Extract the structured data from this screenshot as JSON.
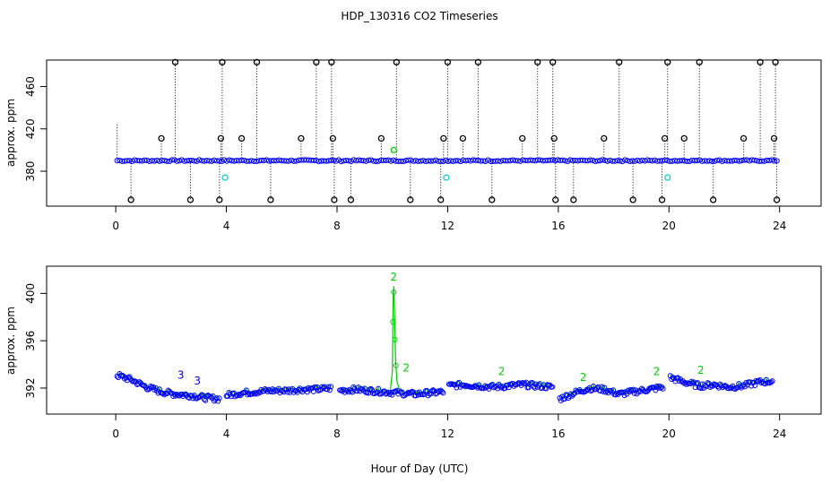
{
  "title": "HDP_130316  CO2 Timeseries",
  "xlabel": "Hour of Day (UTC)",
  "colors": {
    "blue": "#0000ff",
    "green": "#00cc00",
    "black": "#000000",
    "cyan": "#00cccc"
  },
  "chart_data": [
    {
      "type": "scatter",
      "ylabel": "approx. ppm",
      "xlim": [
        -2.5,
        25.5
      ],
      "ylim": [
        347,
        485
      ],
      "xticks": [
        "0",
        "4",
        "8",
        "12",
        "16",
        "20",
        "24"
      ],
      "yticks": [
        "380",
        "420",
        "460"
      ],
      "baseline": 390,
      "high_spikes": [
        {
          "x": 2.15,
          "y": 483
        },
        {
          "x": 3.85,
          "y": 483
        },
        {
          "x": 5.1,
          "y": 483
        },
        {
          "x": 7.25,
          "y": 483
        },
        {
          "x": 7.8,
          "y": 483
        },
        {
          "x": 10.15,
          "y": 483
        },
        {
          "x": 12.0,
          "y": 483
        },
        {
          "x": 13.1,
          "y": 483
        },
        {
          "x": 15.25,
          "y": 483
        },
        {
          "x": 15.8,
          "y": 483
        },
        {
          "x": 18.2,
          "y": 483
        },
        {
          "x": 19.95,
          "y": 483
        },
        {
          "x": 21.1,
          "y": 483
        },
        {
          "x": 23.3,
          "y": 483
        },
        {
          "x": 23.85,
          "y": 483
        }
      ],
      "mid_spikes": [
        {
          "x": 1.65,
          "y": 411
        },
        {
          "x": 3.8,
          "y": 411
        },
        {
          "x": 4.55,
          "y": 411
        },
        {
          "x": 6.7,
          "y": 411
        },
        {
          "x": 7.85,
          "y": 411
        },
        {
          "x": 9.6,
          "y": 411
        },
        {
          "x": 11.85,
          "y": 411
        },
        {
          "x": 12.55,
          "y": 411
        },
        {
          "x": 14.7,
          "y": 411
        },
        {
          "x": 15.85,
          "y": 411
        },
        {
          "x": 17.65,
          "y": 411
        },
        {
          "x": 19.85,
          "y": 411
        },
        {
          "x": 20.55,
          "y": 411
        },
        {
          "x": 22.7,
          "y": 411
        },
        {
          "x": 23.8,
          "y": 411
        }
      ],
      "low_spikes": [
        {
          "x": 0.55,
          "y": 353
        },
        {
          "x": 2.7,
          "y": 353
        },
        {
          "x": 3.75,
          "y": 353
        },
        {
          "x": 5.6,
          "y": 353
        },
        {
          "x": 7.9,
          "y": 353
        },
        {
          "x": 8.5,
          "y": 353
        },
        {
          "x": 10.65,
          "y": 353
        },
        {
          "x": 11.75,
          "y": 353
        },
        {
          "x": 13.6,
          "y": 353
        },
        {
          "x": 15.9,
          "y": 353
        },
        {
          "x": 16.55,
          "y": 353
        },
        {
          "x": 18.7,
          "y": 353
        },
        {
          "x": 19.75,
          "y": 353
        },
        {
          "x": 21.6,
          "y": 353
        },
        {
          "x": 23.9,
          "y": 353
        }
      ],
      "cyan_points": [
        {
          "x": 3.95,
          "y": 374
        },
        {
          "x": 11.95,
          "y": 374
        },
        {
          "x": 19.95,
          "y": 374
        }
      ],
      "green_point": {
        "x": 10.05,
        "y": 400
      }
    },
    {
      "type": "scatter",
      "ylabel": "approx. ppm",
      "xlim": [
        -2.5,
        25.5
      ],
      "ylim": [
        389.8,
        402.3
      ],
      "xticks": [
        "0",
        "4",
        "8",
        "12",
        "16",
        "20",
        "24"
      ],
      "yticks": [
        "392",
        "396",
        "400"
      ],
      "segments": [
        {
          "x0": 0.05,
          "x1": 3.75,
          "y": [
            393.2,
            392.8,
            392.2,
            391.8,
            391.6,
            391.5,
            391.3,
            391.2
          ]
        },
        {
          "x0": 4.0,
          "x1": 7.8,
          "y": [
            391.5,
            391.7,
            391.8,
            391.9,
            391.9,
            392.0,
            392.0,
            392.1
          ]
        },
        {
          "x0": 8.1,
          "x1": 11.85,
          "y": [
            391.9,
            392.0,
            391.9,
            391.8,
            391.7,
            391.6,
            391.7,
            391.8
          ]
        },
        {
          "x0": 12.05,
          "x1": 15.8,
          "y": [
            392.3,
            392.4,
            392.3,
            392.2,
            392.3,
            392.4,
            392.3,
            392.2
          ]
        },
        {
          "x0": 16.05,
          "x1": 19.8,
          "y": [
            391.2,
            391.7,
            392.1,
            392.0,
            391.6,
            391.8,
            392.0,
            392.2
          ]
        },
        {
          "x0": 20.05,
          "x1": 23.75,
          "y": [
            393.0,
            392.6,
            392.3,
            392.4,
            392.2,
            392.3,
            392.6,
            392.7
          ]
        }
      ],
      "spike": {
        "x": 10.05,
        "peak": 400.6,
        "base": 391.9
      },
      "point_labels": [
        {
          "text": "3",
          "x": 2.35,
          "y": 392.8,
          "color": "blue"
        },
        {
          "text": "3",
          "x": 2.95,
          "y": 392.3,
          "color": "blue"
        },
        {
          "text": "2",
          "x": 10.05,
          "y": 401.1,
          "color": "green"
        },
        {
          "text": "2",
          "x": 10.5,
          "y": 393.4,
          "color": "green"
        },
        {
          "text": "2",
          "x": 13.95,
          "y": 393.1,
          "color": "green"
        },
        {
          "text": "2",
          "x": 19.55,
          "y": 393.1,
          "color": "green"
        },
        {
          "text": "2",
          "x": 21.15,
          "y": 393.2,
          "color": "green"
        },
        {
          "text": "2",
          "x": 16.9,
          "y": 392.6,
          "color": "green"
        }
      ]
    }
  ]
}
